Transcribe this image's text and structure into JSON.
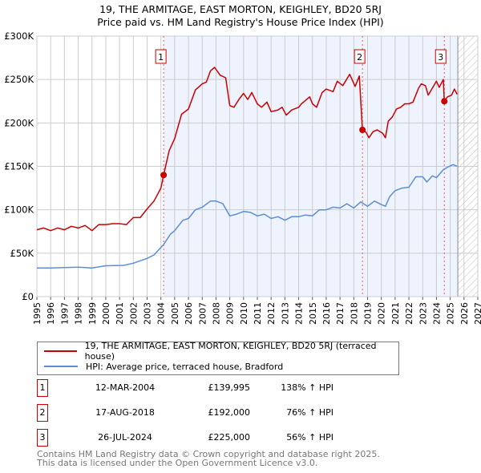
{
  "chart_data": {
    "type": "line",
    "title": "19, THE ARMITAGE, EAST MORTON, KEIGHLEY, BD20 5RJ",
    "subtitle": "Price paid vs. HM Land Registry's House Price Index (HPI)",
    "xlim": [
      1995,
      2027
    ],
    "ylim": [
      0,
      300000
    ],
    "x_ticks": [
      "1995",
      "1996",
      "1997",
      "1998",
      "1999",
      "2000",
      "2001",
      "2002",
      "2003",
      "2004",
      "2005",
      "2006",
      "2007",
      "2008",
      "2009",
      "2010",
      "2011",
      "2012",
      "2013",
      "2014",
      "2015",
      "2016",
      "2017",
      "2018",
      "2019",
      "2020",
      "2021",
      "2022",
      "2023",
      "2024",
      "2025",
      "2026",
      "2027"
    ],
    "y_ticks": [
      {
        "v": 0,
        "label": "£0"
      },
      {
        "v": 50000,
        "label": "£50K"
      },
      {
        "v": 100000,
        "label": "£100K"
      },
      {
        "v": 150000,
        "label": "£150K"
      },
      {
        "v": 200000,
        "label": "£200K"
      },
      {
        "v": 250000,
        "label": "£250K"
      },
      {
        "v": 300000,
        "label": "£300K"
      }
    ],
    "grid": true,
    "shaded_from": 2004.2,
    "data_end": 2025.55,
    "series": [
      {
        "name": "19, THE ARMITAGE, EAST MORTON, KEIGHLEY, BD20 5RJ (terraced house)",
        "color": "#cc0000",
        "x": [
          1995,
          1995.5,
          1996,
          1996.5,
          1997,
          1997.5,
          1998,
          1998.5,
          1999,
          1999.5,
          2000,
          2000.5,
          2001,
          2001.5,
          2002,
          2002.5,
          2003,
          2003.5,
          2004,
          2004.2,
          2004.6,
          2005,
          2005.5,
          2006,
          2006.5,
          2007,
          2007.3,
          2007.6,
          2007.9,
          2008.3,
          2008.7,
          2009,
          2009.3,
          2009.7,
          2010,
          2010.3,
          2010.6,
          2011,
          2011.3,
          2011.7,
          2012,
          2012.5,
          2012.8,
          2013.1,
          2013.5,
          2014,
          2014.2,
          2014.8,
          2015,
          2015.3,
          2015.7,
          2016,
          2016.5,
          2016.8,
          2017.2,
          2017.7,
          2018.1,
          2018.4,
          2018.63,
          2018.9,
          2019.1,
          2019.4,
          2019.7,
          2020.1,
          2020.3,
          2020.5,
          2020.8,
          2021.1,
          2021.4,
          2021.7,
          2022,
          2022.3,
          2022.7,
          2022.9,
          2023.2,
          2023.4,
          2023.7,
          2024,
          2024.2,
          2024.5,
          2024.57,
          2024.8,
          2025.1,
          2025.3,
          2025.5
        ],
        "y": [
          77000,
          79000,
          76000,
          79000,
          77000,
          81000,
          79000,
          82000,
          76000,
          83000,
          83000,
          84000,
          84000,
          83000,
          91000,
          91000,
          101000,
          110000,
          125000,
          139995,
          168000,
          182000,
          210000,
          216000,
          238000,
          245000,
          247000,
          260000,
          264000,
          255000,
          252000,
          220000,
          218000,
          228000,
          234000,
          227000,
          235000,
          222000,
          218000,
          224000,
          213000,
          215000,
          218000,
          209000,
          215000,
          218000,
          222000,
          230000,
          222000,
          218000,
          235000,
          239000,
          236000,
          248000,
          243000,
          256000,
          242000,
          254000,
          192000,
          189000,
          183000,
          190000,
          192000,
          188000,
          183000,
          202000,
          207000,
          216000,
          218000,
          222000,
          222000,
          224000,
          240000,
          245000,
          243000,
          232000,
          240000,
          248000,
          241000,
          250000,
          225000,
          230000,
          232000,
          239000,
          233000
        ]
      },
      {
        "name": "HPI: Average price, terraced house, Bradford",
        "color": "#5b8ed6",
        "x": [
          1995,
          1996,
          1997,
          1998,
          1999,
          2000,
          2001.3,
          2002,
          2003,
          2003.5,
          2004.2,
          2004.7,
          2005,
          2005.6,
          2006,
          2006.5,
          2007,
          2007.6,
          2008,
          2008.5,
          2009,
          2009.5,
          2010,
          2010.5,
          2011,
          2011.5,
          2012,
          2012.5,
          2013,
          2013.5,
          2014,
          2014.5,
          2015,
          2015.5,
          2016,
          2016.5,
          2017,
          2017.5,
          2018,
          2018.5,
          2019,
          2019.5,
          2020,
          2020.3,
          2020.6,
          2021,
          2021.5,
          2022,
          2022.5,
          2023,
          2023.3,
          2023.7,
          2024,
          2024.5,
          2024.8,
          2025.2,
          2025.5
        ],
        "y": [
          33000,
          33000,
          33500,
          34000,
          33000,
          35500,
          36000,
          38500,
          44000,
          48000,
          60000,
          72000,
          76000,
          88000,
          90000,
          100000,
          103000,
          110000,
          110000,
          107000,
          93000,
          95000,
          98000,
          97000,
          93000,
          95000,
          90000,
          92000,
          88000,
          92000,
          92000,
          94000,
          93000,
          100000,
          100000,
          103000,
          102000,
          107000,
          102000,
          109000,
          104000,
          110000,
          106000,
          104000,
          115000,
          122000,
          125000,
          126000,
          138000,
          138000,
          132000,
          139000,
          137000,
          146000,
          149000,
          152000,
          150000
        ]
      }
    ],
    "sales": [
      {
        "n": "1",
        "x": 2004.2,
        "y": 139995,
        "date": "12-MAR-2004",
        "price": "£139,995",
        "hpi": "138% ↑ HPI"
      },
      {
        "n": "2",
        "x": 2018.63,
        "y": 192000,
        "date": "17-AUG-2018",
        "price": "£192,000",
        "hpi": "76% ↑ HPI"
      },
      {
        "n": "3",
        "x": 2024.57,
        "y": 225000,
        "date": "26-JUL-2024",
        "price": "£225,000",
        "hpi": "56% ↑ HPI"
      }
    ]
  },
  "header": {
    "title": "19, THE ARMITAGE, EAST MORTON, KEIGHLEY, BD20 5RJ",
    "subtitle": "Price paid vs. HM Land Registry's House Price Index (HPI)"
  },
  "legend": {
    "red": "19, THE ARMITAGE, EAST MORTON, KEIGHLEY, BD20 5RJ (terraced house)",
    "blue": "HPI: Average price, terraced house, Bradford"
  },
  "footer": {
    "line1": "Contains HM Land Registry data © Crown copyright and database right 2025.",
    "line2": "This data is licensed under the Open Government Licence v3.0."
  }
}
